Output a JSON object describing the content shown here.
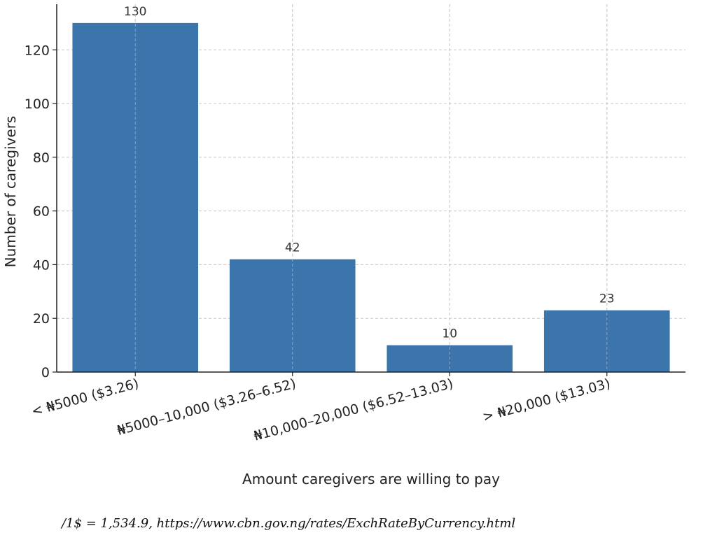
{
  "chart_data": {
    "type": "bar",
    "title": "",
    "xlabel": "Amount caregivers are willing to pay",
    "ylabel": "Number of caregivers",
    "categories": [
      "< ₦5000 ($3.26)",
      "₦5000–10,000 ($3.26–6.52)",
      "₦10,000–20,000 ($6.52–13.03)",
      "> ₦20,000 ($13.03)"
    ],
    "values": [
      130,
      42,
      10,
      23
    ],
    "ylim": [
      0,
      137
    ],
    "yticks": [
      0,
      20,
      40,
      60,
      80,
      100,
      120
    ],
    "grid": true,
    "bar_color": "#3b75ab"
  },
  "footnote": "/1$ = 1,534.9, https://www.cbn.gov.ng/rates/ExchRateByCurrency.html"
}
